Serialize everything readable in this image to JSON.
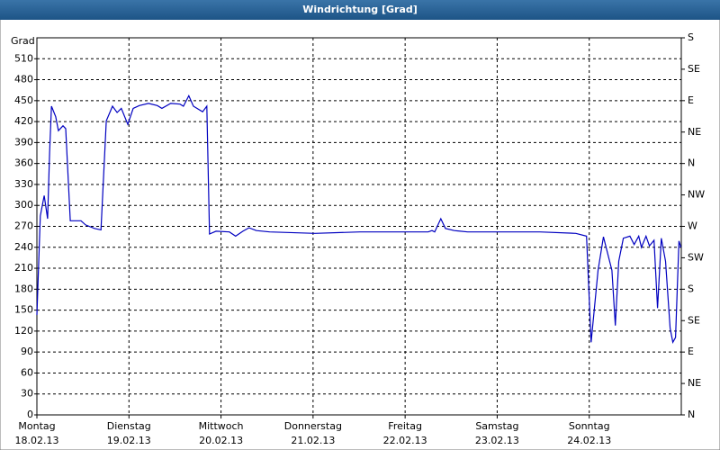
{
  "chart_data": {
    "type": "line",
    "title": "Windrichtung [Grad]",
    "y_label": "Grad",
    "x": [
      0,
      0.9,
      1.9,
      2.8,
      3.3,
      3.8,
      4.9,
      5.6,
      6.8,
      7.5,
      8.7,
      11.5,
      12.7,
      15.0,
      16.7,
      18.1,
      19.7,
      20.9,
      22.0,
      23.7,
      25.1,
      26.7,
      29.1,
      31.4,
      32.6,
      34.9,
      37.3,
      38.2,
      39.6,
      40.8,
      43.2,
      44.3,
      45.0,
      46.7,
      50.2,
      51.8,
      53.7,
      55.3,
      57.2,
      60.7,
      72.5,
      84.2,
      102.0,
      103.0,
      103.7,
      105.3,
      106.5,
      108.8,
      112.3,
      131.1,
      140.5,
      143.3,
      144.5,
      146.3,
      147.7,
      149.9,
      150.8,
      151.7,
      152.9,
      154.6,
      155.7,
      156.9,
      157.6,
      158.8,
      159.7,
      160.9,
      161.8,
      162.8,
      163.9,
      165.1,
      165.8,
      166.5,
      167.4,
      167.9
    ],
    "values": [
      143,
      285,
      314,
      281,
      375,
      442,
      427,
      407,
      414,
      410,
      278,
      278,
      272,
      267,
      265,
      421,
      442,
      433,
      439,
      416,
      439,
      443,
      446,
      443,
      439,
      446,
      445,
      442,
      457,
      442,
      434,
      442,
      259,
      263,
      262,
      256,
      263,
      268,
      264,
      262,
      260,
      262,
      262,
      264,
      262,
      281,
      267,
      264,
      262,
      262,
      260,
      256,
      104,
      207,
      255,
      207,
      128,
      220,
      253,
      256,
      244,
      256,
      240,
      256,
      242,
      250,
      153,
      253,
      220,
      124,
      104,
      111,
      249,
      240
    ],
    "color": "#0000c0",
    "xlim": [
      0,
      168
    ],
    "xticks": [
      {
        "value": 0,
        "label": "Montag"
      },
      {
        "value": 24,
        "label": "Dienstag"
      },
      {
        "value": 48,
        "label": "Mittwoch"
      },
      {
        "value": 72,
        "label": "Donnerstag"
      },
      {
        "value": 96,
        "label": "Freitag"
      },
      {
        "value": 120,
        "label": "Samstag"
      },
      {
        "value": 144,
        "label": "Sonntag"
      }
    ],
    "xtick_dates": [
      "18.02.13",
      "19.02.13",
      "20.02.13",
      "21.02.13",
      "22.02.13",
      "23.02.13",
      "24.02.13"
    ],
    "ylim": [
      0,
      540
    ],
    "yticks": [
      0,
      30,
      60,
      90,
      120,
      150,
      180,
      210,
      240,
      270,
      300,
      330,
      360,
      390,
      420,
      450,
      480,
      510
    ],
    "y2lim": [
      0,
      540
    ],
    "y2ticks": [
      {
        "value": 0,
        "label": "N"
      },
      {
        "value": 45,
        "label": "NE"
      },
      {
        "value": 90,
        "label": "E"
      },
      {
        "value": 135,
        "label": "SE"
      },
      {
        "value": 180,
        "label": "S"
      },
      {
        "value": 225,
        "label": "SW"
      },
      {
        "value": 270,
        "label": "W"
      },
      {
        "value": 315,
        "label": "NW"
      },
      {
        "value": 360,
        "label": "N"
      },
      {
        "value": 405,
        "label": "NE"
      },
      {
        "value": 450,
        "label": "E"
      },
      {
        "value": 495,
        "label": "SE"
      },
      {
        "value": 540,
        "label": "S"
      }
    ],
    "grid": true
  }
}
